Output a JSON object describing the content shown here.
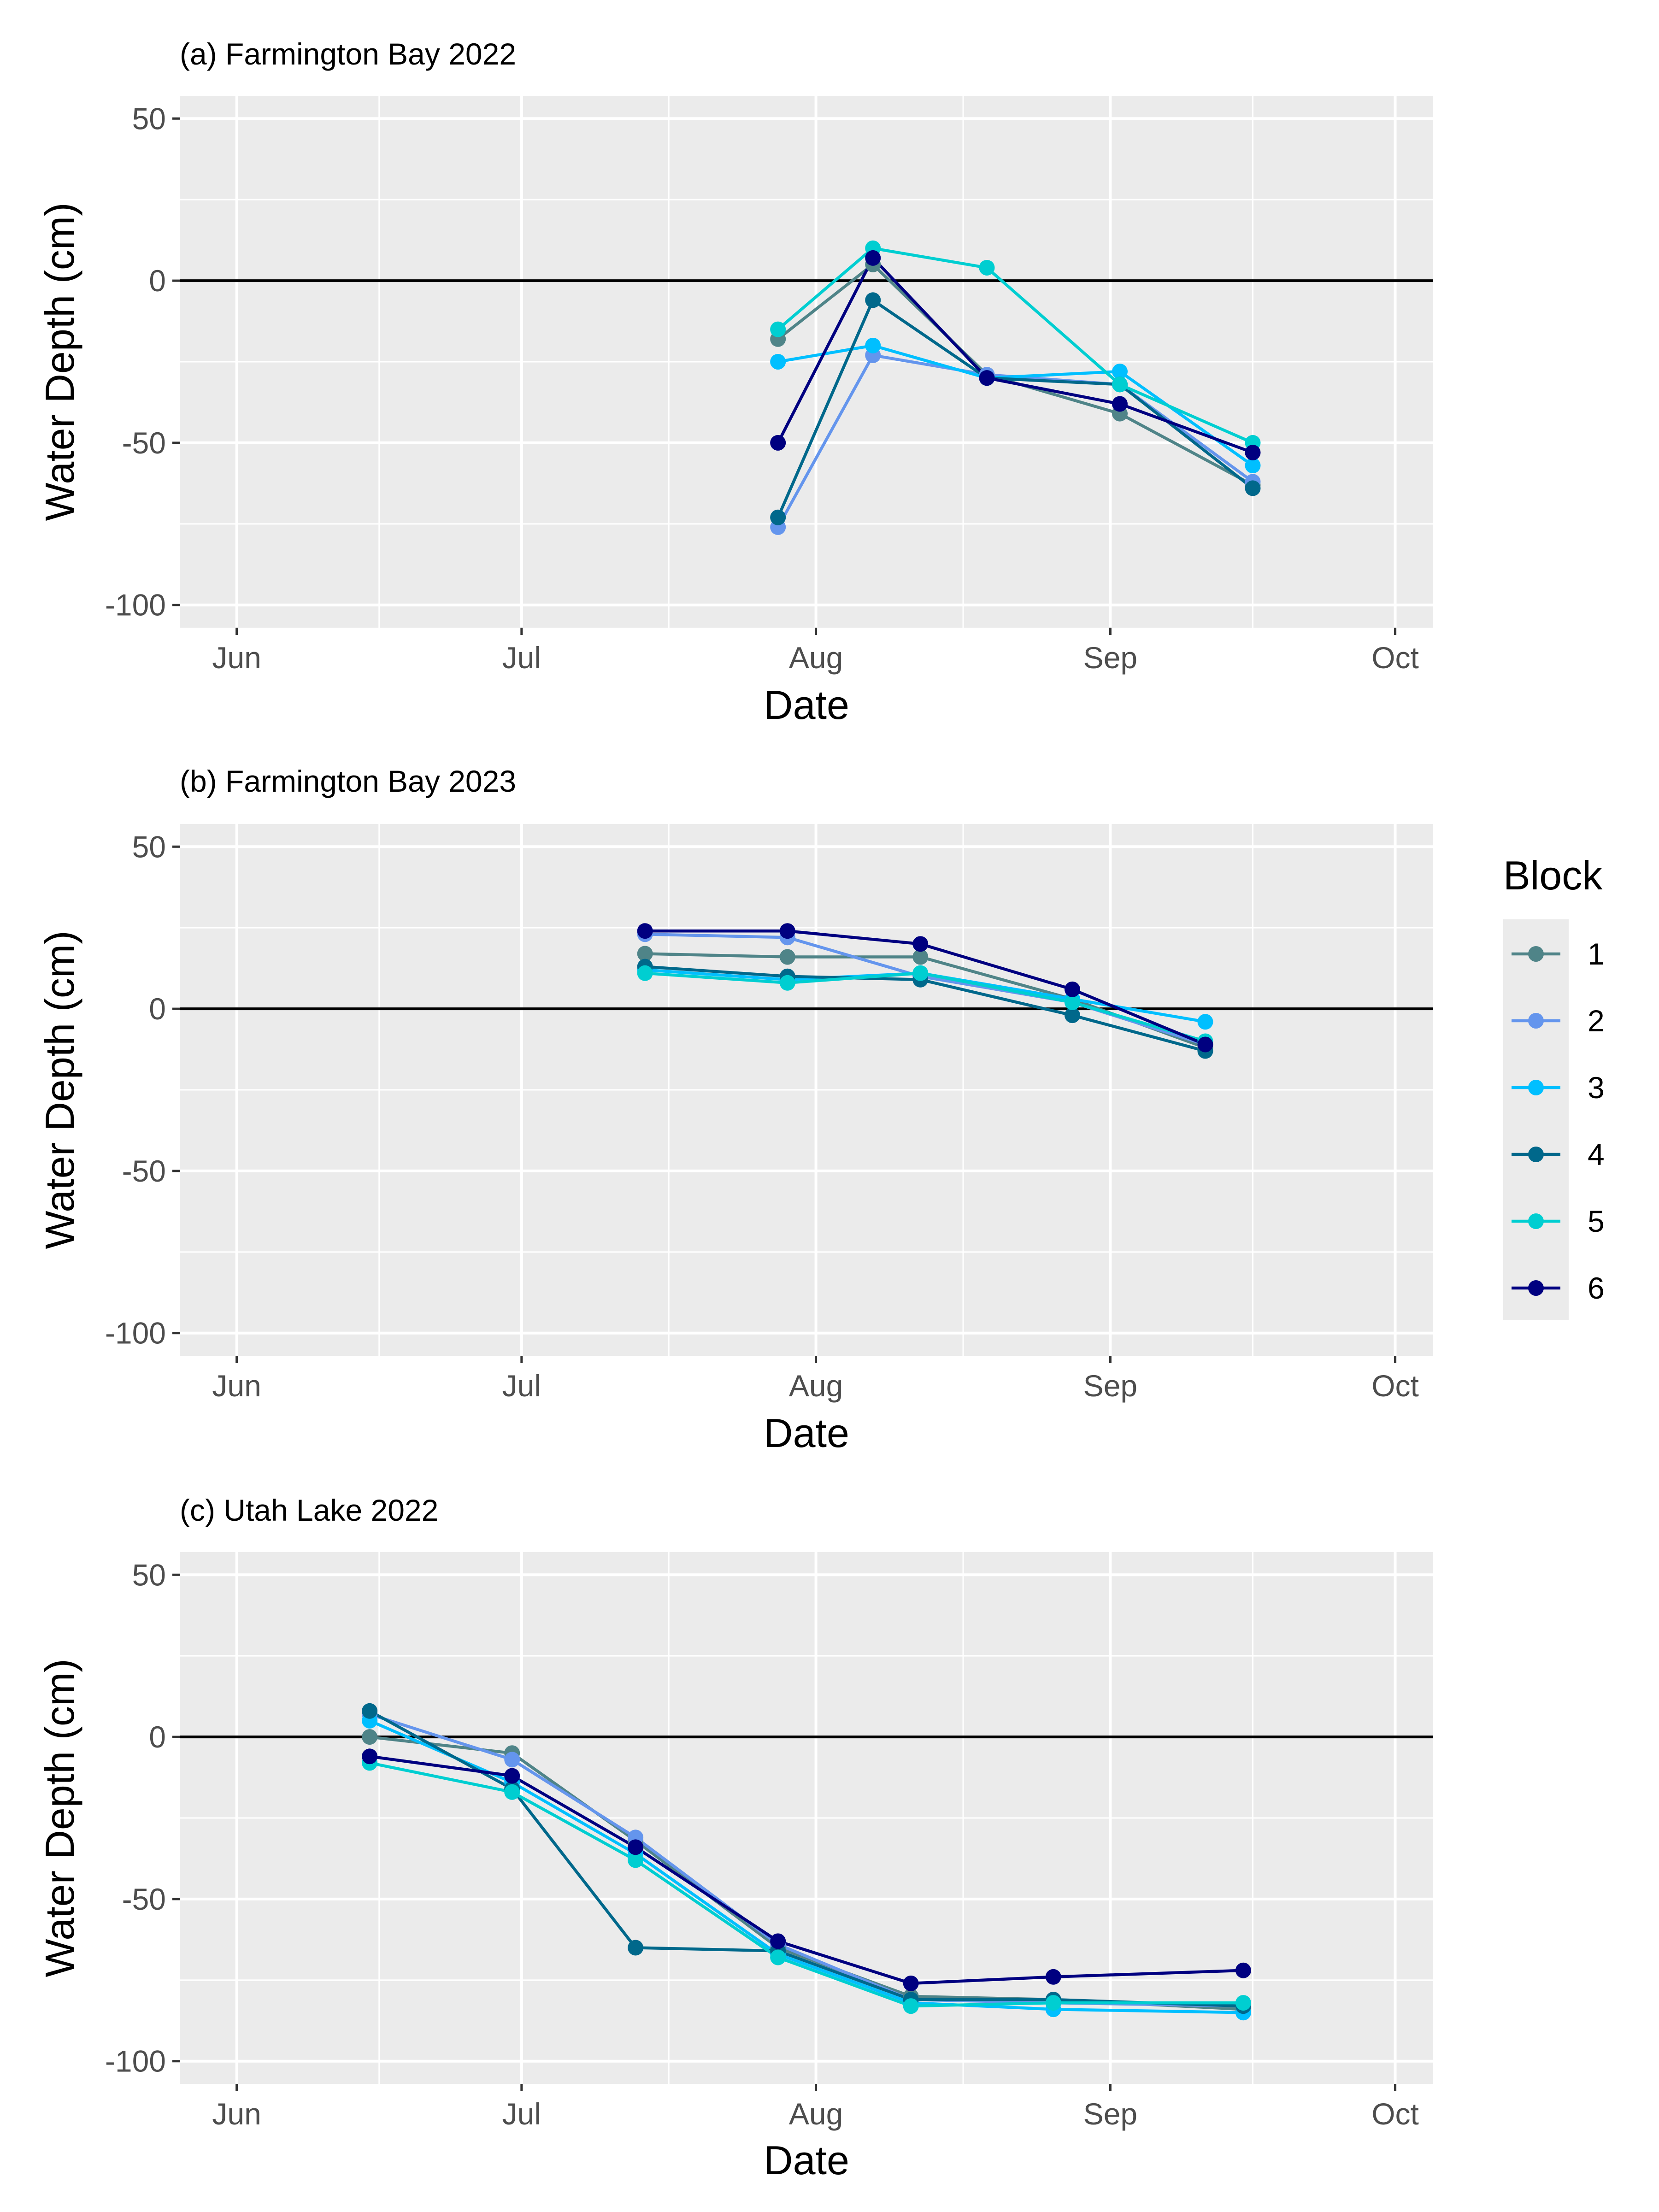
{
  "chart_data": [
    {
      "type": "line",
      "title": "(a) Farmington Bay 2022",
      "xlabel": "Date",
      "ylabel": "Water Depth (cm)",
      "x_ticks": [
        "Jun",
        "Jul",
        "Aug",
        "Sep",
        "Oct"
      ],
      "y_ticks": [
        50,
        0,
        -50,
        -100
      ],
      "ylim": [
        -107,
        57
      ],
      "xlim": [
        "2022-05-26",
        "2022-10-05"
      ],
      "zero_reference_line": 0,
      "grid": true,
      "series": [
        {
          "name": "1",
          "x": [
            "2022-07-28",
            "2022-08-07",
            "2022-08-19",
            "2022-09-02",
            "2022-09-16"
          ],
          "y": [
            -18,
            5,
            -29,
            -41,
            -63
          ]
        },
        {
          "name": "2",
          "x": [
            "2022-07-28",
            "2022-08-07",
            "2022-08-19",
            "2022-09-02",
            "2022-09-16"
          ],
          "y": [
            -76,
            -23,
            -29,
            -32,
            -62
          ]
        },
        {
          "name": "3",
          "x": [
            "2022-07-28",
            "2022-08-07",
            "2022-08-19",
            "2022-09-02",
            "2022-09-16"
          ],
          "y": [
            -25,
            -20,
            -30,
            -28,
            -57
          ]
        },
        {
          "name": "4",
          "x": [
            "2022-07-28",
            "2022-08-07",
            "2022-08-19",
            "2022-09-02",
            "2022-09-16"
          ],
          "y": [
            -73,
            -6,
            -30,
            -32,
            -64
          ]
        },
        {
          "name": "5",
          "x": [
            "2022-07-28",
            "2022-08-07",
            "2022-08-19",
            "2022-09-02",
            "2022-09-16"
          ],
          "y": [
            -15,
            10,
            4,
            -32,
            -50
          ]
        },
        {
          "name": "6",
          "x": [
            "2022-07-28",
            "2022-08-07",
            "2022-08-19",
            "2022-09-02",
            "2022-09-16"
          ],
          "y": [
            -50,
            7,
            -30,
            -38,
            -53
          ]
        }
      ]
    },
    {
      "type": "line",
      "title": "(b) Farmington Bay 2023",
      "xlabel": "Date",
      "ylabel": "Water Depth (cm)",
      "x_ticks": [
        "Jun",
        "Jul",
        "Aug",
        "Sep",
        "Oct"
      ],
      "y_ticks": [
        50,
        0,
        -50,
        -100
      ],
      "ylim": [
        -107,
        57
      ],
      "xlim": [
        "2023-05-26",
        "2023-10-05"
      ],
      "zero_reference_line": 0,
      "grid": true,
      "series": [
        {
          "name": "1",
          "x": [
            "2023-07-14",
            "2023-07-29",
            "2023-08-12",
            "2023-08-28",
            "2023-09-11"
          ],
          "y": [
            17,
            16,
            16,
            3,
            -12
          ]
        },
        {
          "name": "2",
          "x": [
            "2023-07-14",
            "2023-07-29",
            "2023-08-12",
            "2023-08-28",
            "2023-09-11"
          ],
          "y": [
            23,
            22,
            10,
            2,
            -11
          ]
        },
        {
          "name": "3",
          "x": [
            "2023-07-14",
            "2023-07-29",
            "2023-08-12",
            "2023-08-28",
            "2023-09-11"
          ],
          "y": [
            12,
            9,
            11,
            3,
            -4
          ]
        },
        {
          "name": "4",
          "x": [
            "2023-07-14",
            "2023-07-29",
            "2023-08-12",
            "2023-08-28",
            "2023-09-11"
          ],
          "y": [
            13,
            10,
            9,
            -2,
            -13
          ]
        },
        {
          "name": "5",
          "x": [
            "2023-07-14",
            "2023-07-29",
            "2023-08-12",
            "2023-08-28",
            "2023-09-11"
          ],
          "y": [
            11,
            8,
            11,
            2,
            -10
          ]
        },
        {
          "name": "6",
          "x": [
            "2023-07-14",
            "2023-07-29",
            "2023-08-12",
            "2023-08-28",
            "2023-09-11"
          ],
          "y": [
            24,
            24,
            20,
            6,
            -11
          ]
        }
      ]
    },
    {
      "type": "line",
      "title": "(c) Utah Lake 2022",
      "xlabel": "Date",
      "ylabel": "Water Depth (cm)",
      "x_ticks": [
        "Jun",
        "Jul",
        "Aug",
        "Sep",
        "Oct"
      ],
      "y_ticks": [
        50,
        0,
        -50,
        -100
      ],
      "ylim": [
        -107,
        57
      ],
      "xlim": [
        "2022-05-26",
        "2022-10-05"
      ],
      "zero_reference_line": 0,
      "grid": true,
      "series": [
        {
          "name": "1",
          "x": [
            "2022-06-15",
            "2022-06-30",
            "2022-07-13",
            "2022-07-28",
            "2022-08-11",
            "2022-08-26",
            "2022-09-15"
          ],
          "y": [
            0,
            -5,
            -32,
            -65,
            -80,
            -81,
            -84
          ]
        },
        {
          "name": "2",
          "x": [
            "2022-06-15",
            "2022-06-30",
            "2022-07-13",
            "2022-07-28",
            "2022-08-11",
            "2022-08-26",
            "2022-09-15"
          ],
          "y": [
            7,
            -7,
            -31,
            -64,
            -81,
            -82,
            -83
          ]
        },
        {
          "name": "3",
          "x": [
            "2022-06-15",
            "2022-06-30",
            "2022-07-13",
            "2022-07-28",
            "2022-08-11",
            "2022-08-26",
            "2022-09-15"
          ],
          "y": [
            5,
            -14,
            -36,
            -67,
            -82,
            -84,
            -85
          ]
        },
        {
          "name": "4",
          "x": [
            "2022-06-15",
            "2022-06-30",
            "2022-07-13",
            "2022-07-28",
            "2022-08-11",
            "2022-08-26",
            "2022-09-15"
          ],
          "y": [
            8,
            -16,
            -65,
            -66,
            -81,
            -81,
            -83
          ]
        },
        {
          "name": "5",
          "x": [
            "2022-06-15",
            "2022-06-30",
            "2022-07-13",
            "2022-07-28",
            "2022-08-11",
            "2022-08-26",
            "2022-09-15"
          ],
          "y": [
            -8,
            -17,
            -38,
            -68,
            -83,
            -82,
            -82
          ]
        },
        {
          "name": "6",
          "x": [
            "2022-06-15",
            "2022-06-30",
            "2022-07-13",
            "2022-07-28",
            "2022-08-11",
            "2022-08-26",
            "2022-09-15"
          ],
          "y": [
            -6,
            -12,
            -34,
            -63,
            -76,
            -74,
            -72
          ]
        }
      ]
    }
  ],
  "legend": {
    "title": "Block",
    "placement": "right",
    "entries": [
      {
        "label": "1",
        "color": "#4F8488"
      },
      {
        "label": "2",
        "color": "#6495ED"
      },
      {
        "label": "3",
        "color": "#00BFFF"
      },
      {
        "label": "4",
        "color": "#00688B"
      },
      {
        "label": "5",
        "color": "#00CED1"
      },
      {
        "label": "6",
        "color": "#000080"
      }
    ]
  },
  "colors": {
    "panel_background": "#EBEBEB",
    "major_grid": "#FFFFFF",
    "zero_line": "#000000",
    "tick_text": "#4D4D4D"
  }
}
